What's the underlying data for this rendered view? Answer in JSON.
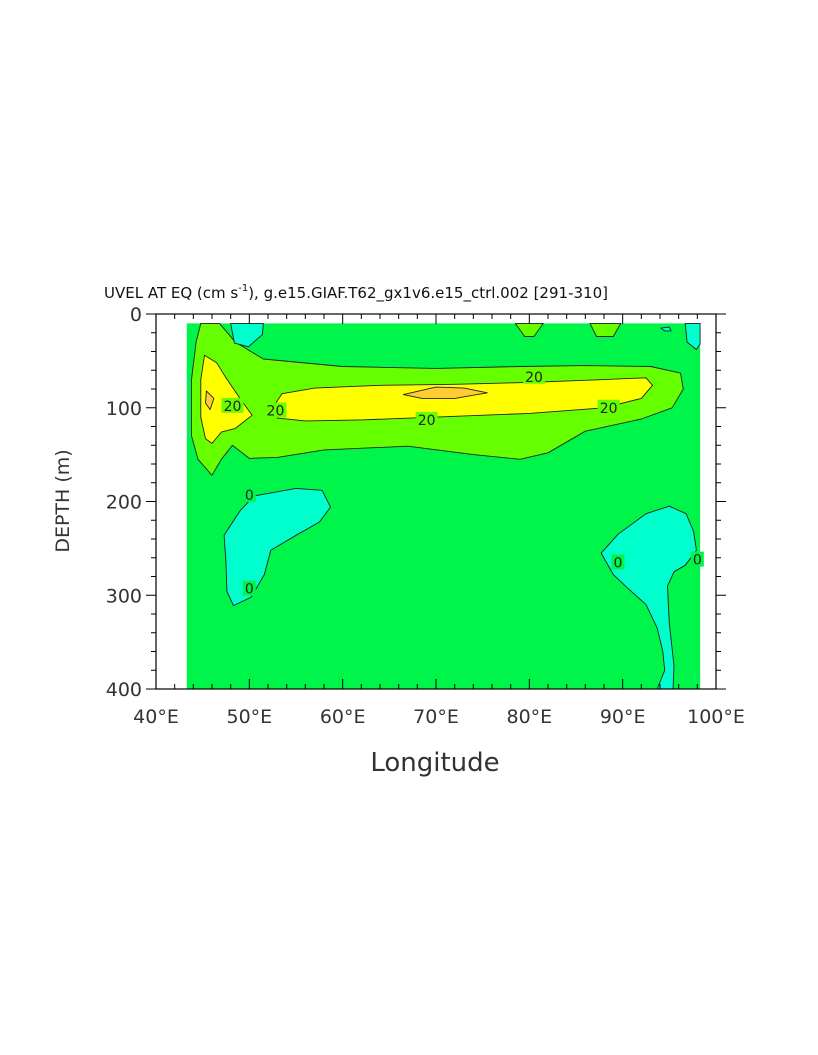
{
  "chart_data": {
    "type": "contour",
    "title_main": "UVEL AT EQ (cm s",
    "title_sup": "-1",
    "title_rest": "), g.e15.GIAF.T62_gx1v6.e15_ctrl.002  [291-310]",
    "xlabel": "Longitude",
    "ylabel": "DEPTH (m)",
    "xlim": [
      40,
      100
    ],
    "ylim": [
      0,
      400
    ],
    "y_inverted": true,
    "x_ticks": [
      {
        "value": 40,
        "label": "40°E"
      },
      {
        "value": 50,
        "label": "50°E"
      },
      {
        "value": 60,
        "label": "60°E"
      },
      {
        "value": 70,
        "label": "70°E"
      },
      {
        "value": 80,
        "label": "80°E"
      },
      {
        "value": 90,
        "label": "90°E"
      },
      {
        "value": 100,
        "label": "100°E"
      }
    ],
    "y_ticks": [
      {
        "value": 0,
        "label": "0"
      },
      {
        "value": 100,
        "label": "100"
      },
      {
        "value": 200,
        "label": "200"
      },
      {
        "value": 300,
        "label": "300"
      },
      {
        "value": 400,
        "label": "400"
      }
    ],
    "data_extent": {
      "lon": [
        43.3,
        98.3
      ],
      "depth": [
        10,
        400
      ]
    },
    "fill_colors": {
      "negative": "#00ffcc",
      "zero_to_10": "#00f54a",
      "ten_to_20": "#66ff00",
      "twenty_to_30": "#ffff00",
      "above_30": "#ffcc33",
      "contour_line": "#222222"
    },
    "regions": [
      {
        "level": "ten_to_20",
        "points": [
          [
            44.8,
            10
          ],
          [
            46.8,
            10
          ],
          [
            48.5,
            30
          ],
          [
            51.5,
            48
          ],
          [
            60,
            56
          ],
          [
            70,
            58
          ],
          [
            79,
            56
          ],
          [
            86,
            55
          ],
          [
            93,
            56
          ],
          [
            96.2,
            63
          ],
          [
            96.5,
            80
          ],
          [
            95.3,
            100
          ],
          [
            92,
            112
          ],
          [
            86,
            125
          ],
          [
            82,
            148
          ],
          [
            79,
            155
          ],
          [
            74,
            150
          ],
          [
            67,
            141
          ],
          [
            58,
            145
          ],
          [
            53,
            153
          ],
          [
            50,
            154
          ],
          [
            48.2,
            140
          ],
          [
            47,
            155
          ],
          [
            46,
            172
          ],
          [
            44.5,
            155
          ],
          [
            43.8,
            130
          ],
          [
            43.8,
            70
          ],
          [
            44.3,
            30
          ]
        ]
      },
      {
        "level": "ten_to_20",
        "points": [
          [
            78.5,
            10
          ],
          [
            81.5,
            10
          ],
          [
            80.5,
            24
          ],
          [
            79.5,
            24
          ]
        ]
      },
      {
        "level": "ten_to_20",
        "points": [
          [
            86.5,
            10
          ],
          [
            89.8,
            10
          ],
          [
            89,
            24
          ],
          [
            87.2,
            24
          ]
        ]
      },
      {
        "level": "twenty_to_30",
        "points": [
          [
            45.2,
            44
          ],
          [
            46.5,
            52
          ],
          [
            47.5,
            68
          ],
          [
            49,
            90
          ],
          [
            50.3,
            108
          ],
          [
            48.5,
            122
          ],
          [
            47,
            126
          ],
          [
            46,
            138
          ],
          [
            45.3,
            133
          ],
          [
            44.8,
            110
          ],
          [
            44.8,
            70
          ]
        ]
      },
      {
        "level": "twenty_to_30",
        "points": [
          [
            53.5,
            85
          ],
          [
            57,
            79
          ],
          [
            64,
            76
          ],
          [
            72,
            75
          ],
          [
            80,
            73
          ],
          [
            88,
            70
          ],
          [
            92.5,
            68
          ],
          [
            93.2,
            76
          ],
          [
            92,
            90
          ],
          [
            88,
            100
          ],
          [
            80,
            106
          ],
          [
            70,
            110
          ],
          [
            62,
            113
          ],
          [
            56,
            114
          ],
          [
            53,
            111
          ],
          [
            52.5,
            100
          ]
        ]
      },
      {
        "level": "above_30",
        "points": [
          [
            45.4,
            82
          ],
          [
            46.2,
            90
          ],
          [
            45.8,
            102
          ],
          [
            45.3,
            95
          ]
        ]
      },
      {
        "level": "above_30",
        "points": [
          [
            66.5,
            86
          ],
          [
            70,
            78
          ],
          [
            73,
            79
          ],
          [
            75.5,
            84
          ],
          [
            72,
            90
          ],
          [
            68.5,
            90
          ]
        ]
      },
      {
        "level": "negative",
        "points": [
          [
            48,
            10
          ],
          [
            51.5,
            10
          ],
          [
            51.4,
            22
          ],
          [
            49.9,
            35
          ],
          [
            48.4,
            31
          ]
        ]
      },
      {
        "level": "negative",
        "points": [
          [
            50.5,
            194
          ],
          [
            55,
            186
          ],
          [
            57.8,
            188
          ],
          [
            58.7,
            206
          ],
          [
            57.5,
            222
          ],
          [
            55,
            236
          ],
          [
            52.3,
            252
          ],
          [
            51.6,
            278
          ],
          [
            50.2,
            302
          ],
          [
            48.3,
            311
          ],
          [
            47.6,
            296
          ],
          [
            47.5,
            266
          ],
          [
            47.3,
            236
          ],
          [
            49,
            210
          ]
        ]
      },
      {
        "level": "negative",
        "points": [
          [
            87.7,
            255
          ],
          [
            89.5,
            235
          ],
          [
            92.5,
            213
          ],
          [
            95,
            205
          ],
          [
            96.8,
            213
          ],
          [
            97.6,
            232
          ],
          [
            97.9,
            252
          ],
          [
            96.7,
            268
          ],
          [
            95.5,
            275
          ],
          [
            94.8,
            290
          ],
          [
            95,
            330
          ],
          [
            95.5,
            375
          ],
          [
            95.4,
            400
          ],
          [
            93.7,
            400
          ],
          [
            94.5,
            380
          ],
          [
            94.3,
            360
          ],
          [
            93.7,
            335
          ],
          [
            92.5,
            310
          ],
          [
            90.5,
            292
          ],
          [
            89,
            278
          ]
        ]
      },
      {
        "level": "negative",
        "points": [
          [
            96.7,
            10
          ],
          [
            98.3,
            10
          ],
          [
            98.3,
            32
          ],
          [
            97.9,
            38
          ],
          [
            96.9,
            30
          ]
        ]
      },
      {
        "level": "negative",
        "points": [
          [
            94.1,
            15
          ],
          [
            95,
            14
          ],
          [
            95.2,
            18
          ],
          [
            94.5,
            18
          ]
        ]
      }
    ],
    "contour_labels": [
      {
        "text": "20",
        "lon": 48.2,
        "depth": 98
      },
      {
        "text": "20",
        "lon": 52.8,
        "depth": 103
      },
      {
        "text": "20",
        "lon": 80.5,
        "depth": 67
      },
      {
        "text": "20",
        "lon": 69,
        "depth": 113
      },
      {
        "text": "20",
        "lon": 88.5,
        "depth": 100
      },
      {
        "text": "0",
        "lon": 50,
        "depth": 193
      },
      {
        "text": "0",
        "lon": 50,
        "depth": 293
      },
      {
        "text": "0",
        "lon": 89.5,
        "depth": 265
      },
      {
        "text": "0",
        "lon": 98,
        "depth": 262
      }
    ],
    "grid": false,
    "legend": "none"
  }
}
